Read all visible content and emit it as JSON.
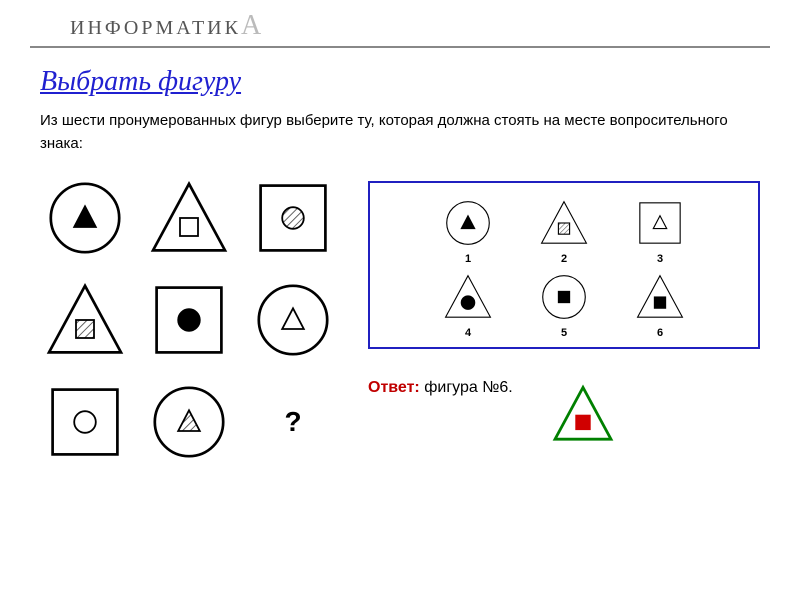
{
  "header": {
    "brand": "ИНФОРМАТИК",
    "brand_suffix": "А"
  },
  "title": "Выбрать фигуру",
  "instruction": "Из шести пронумерованных фигур выберите ту, которая должна стоять на месте вопросительного знака:",
  "puzzle": {
    "grid": [
      {
        "outer": "circle",
        "inner": "triangle",
        "fill": "solid"
      },
      {
        "outer": "triangle",
        "inner": "square",
        "fill": "outline"
      },
      {
        "outer": "square",
        "inner": "circle",
        "fill": "hatch"
      },
      {
        "outer": "triangle",
        "inner": "square",
        "fill": "hatch"
      },
      {
        "outer": "square",
        "inner": "circle",
        "fill": "solid"
      },
      {
        "outer": "circle",
        "inner": "triangle",
        "fill": "outline"
      },
      {
        "outer": "square",
        "inner": "circle",
        "fill": "outline"
      },
      {
        "outer": "circle",
        "inner": "triangle",
        "fill": "hatch"
      },
      {
        "outer": "question",
        "inner": null,
        "fill": null
      }
    ],
    "question_mark": "?"
  },
  "options": [
    {
      "num": "1",
      "outer": "circle",
      "inner": "triangle",
      "fill": "solid"
    },
    {
      "num": "2",
      "outer": "triangle",
      "inner": "square",
      "fill": "hatch"
    },
    {
      "num": "3",
      "outer": "square",
      "inner": "triangle",
      "fill": "outline"
    },
    {
      "num": "4",
      "outer": "triangle",
      "inner": "circle",
      "fill": "solid"
    },
    {
      "num": "5",
      "outer": "circle",
      "inner": "square",
      "fill": "solid"
    },
    {
      "num": "6",
      "outer": "triangle",
      "inner": "square",
      "fill": "solid"
    }
  ],
  "answer": {
    "label": "Ответ:",
    "text": "фигура №6.",
    "figure": {
      "outer": "triangle",
      "inner": "square",
      "fill": "solid",
      "stroke": "#008000",
      "inner_color": "#d00000"
    }
  },
  "style": {
    "stroke_main": "#000000",
    "stroke_width_puzzle": 3,
    "stroke_width_option": 2,
    "stroke_width_answer": 4,
    "title_color": "#2020d0",
    "answer_label_color": "#c00000",
    "options_border": "#2020c0",
    "hatch_color": "#555555"
  }
}
